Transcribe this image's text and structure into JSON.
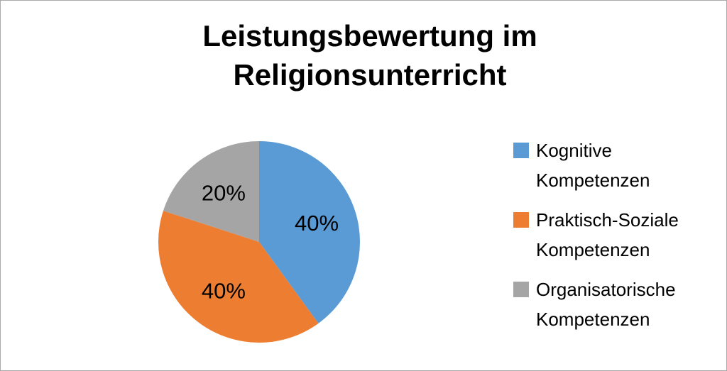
{
  "frame": {
    "background_color": "#ffffff",
    "border_color": "#a9a9a9"
  },
  "chart_data": {
    "type": "pie",
    "title": "Leistungsbewertung im Religionsunterricht",
    "categories": [
      "Kognitive Kompetenzen",
      "Praktisch-Soziale Kompetenzen",
      "Organisatorische Kompetenzen"
    ],
    "values": [
      40,
      40,
      20
    ],
    "data_labels": [
      "40%",
      "40%",
      "20%"
    ],
    "colors": [
      "#5B9BD5",
      "#ED7D31",
      "#A5A5A5"
    ],
    "label_color": "#000000",
    "title_color": "#000000",
    "start_angle_deg": 0,
    "direction": "clockwise",
    "legend_position": "right",
    "grid": false
  }
}
